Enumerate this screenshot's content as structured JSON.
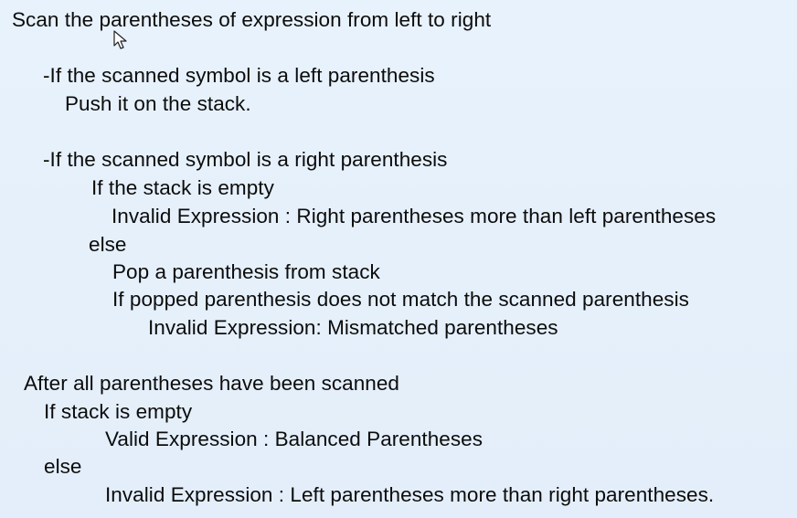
{
  "slide": {
    "lines": [
      "Scan the parentheses of expression from left to right",
      "-If the scanned symbol is a left parenthesis",
      "Push it on the stack.",
      "-If the scanned symbol is a right parenthesis",
      "If the stack is empty",
      "Invalid Expression : Right parentheses more than left parentheses",
      "else",
      "Pop a parenthesis from stack",
      "If popped parenthesis does not match the scanned parenthesis",
      "Invalid Expression: Mismatched parentheses",
      "After all parentheses have been scanned",
      "If stack is empty",
      "Valid Expression : Balanced Parentheses",
      "else",
      "Invalid Expression : Left parentheses more than right parentheses."
    ]
  },
  "icons": {
    "cursor": "mouse-pointer-icon"
  }
}
